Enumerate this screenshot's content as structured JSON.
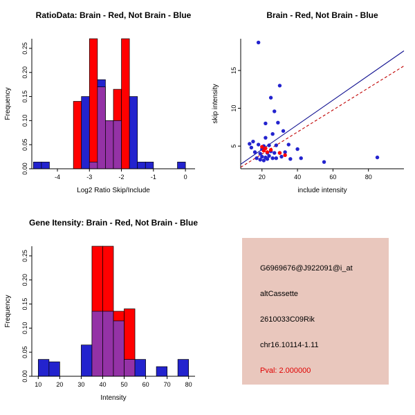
{
  "colors": {
    "red": "#FF0000",
    "blue": "#2323CE",
    "purple": "#9432A6",
    "line_blue": "#101090",
    "line_red": "#C00000",
    "info_bg": "#E9C7BD",
    "pval": "#E00000",
    "text": "#000000",
    "background": "#FFFFFF"
  },
  "chart_data": [
    {
      "type": "bar",
      "subtype": "overlaid-histogram",
      "title": "RatioData: Brain - Red, Not Brain - Blue",
      "xlabel": "Log2 Ratio Skip/Include",
      "ylabel": "Frequency",
      "xlim": [
        -4.8,
        0.3
      ],
      "ylim": [
        0,
        0.27
      ],
      "xticks": [
        -4,
        -3,
        -2,
        -1,
        0
      ],
      "yticks": [
        0,
        0.05,
        0.1,
        0.15,
        0.2,
        0.25
      ],
      "ytick_labels": [
        "0.00",
        "0.05",
        "0.10",
        "0.15",
        "0.20",
        "0.25"
      ],
      "legend": [
        {
          "name": "Brain",
          "color_key": "red"
        },
        {
          "name": "Not Brain",
          "color_key": "blue"
        }
      ],
      "bins": [
        {
          "x0": -4.75,
          "x1": -4.5,
          "red": 0,
          "blue": 0.014
        },
        {
          "x0": -4.5,
          "x1": -4.25,
          "red": 0,
          "blue": 0.014
        },
        {
          "x0": -3.5,
          "x1": -3.25,
          "red": 0.14,
          "blue": 0
        },
        {
          "x0": -3.25,
          "x1": -3.0,
          "red": 0,
          "blue": 0.15
        },
        {
          "x0": -3.0,
          "x1": -2.75,
          "red": 0.285,
          "blue": 0.014
        },
        {
          "x0": -2.75,
          "x1": -2.5,
          "red": 0.17,
          "blue": 0.185
        },
        {
          "x0": -2.5,
          "x1": -2.25,
          "red": 0.1,
          "blue": 0.1
        },
        {
          "x0": -2.25,
          "x1": -2.0,
          "red": 0.165,
          "blue": 0.1
        },
        {
          "x0": -2.0,
          "x1": -1.75,
          "red": 0.285,
          "blue": 0
        },
        {
          "x0": -1.75,
          "x1": -1.5,
          "red": 0,
          "blue": 0.15
        },
        {
          "x0": -1.5,
          "x1": -1.25,
          "red": 0,
          "blue": 0.014
        },
        {
          "x0": -1.25,
          "x1": -1.0,
          "red": 0,
          "blue": 0.014
        },
        {
          "x0": -0.25,
          "x1": 0.0,
          "red": 0,
          "blue": 0.014
        }
      ]
    },
    {
      "type": "scatter",
      "title": "Brain - Red, Not Brain - Blue",
      "xlabel": "include intensity",
      "ylabel": "skip intensity",
      "xlim": [
        8,
        100
      ],
      "ylim": [
        2,
        19.2
      ],
      "xticks": [
        20,
        40,
        60,
        80
      ],
      "yticks": [
        5,
        10,
        15
      ],
      "ytick_labels": [
        "5",
        "10",
        "15"
      ],
      "points_blue": [
        [
          13,
          5.3
        ],
        [
          14,
          4.8
        ],
        [
          15,
          5.6
        ],
        [
          16,
          4.2
        ],
        [
          17,
          3.4
        ],
        [
          18,
          18.7
        ],
        [
          18,
          5.2
        ],
        [
          19,
          4.0
        ],
        [
          19,
          3.2
        ],
        [
          20,
          4.6
        ],
        [
          20,
          3.6
        ],
        [
          21,
          3.1
        ],
        [
          21,
          5.0
        ],
        [
          22,
          3.5
        ],
        [
          22,
          6.1
        ],
        [
          22,
          8.0
        ],
        [
          23,
          4.1
        ],
        [
          23,
          3.3
        ],
        [
          24,
          5.1
        ],
        [
          24,
          3.7
        ],
        [
          25,
          11.4
        ],
        [
          25,
          4.3
        ],
        [
          26,
          3.4
        ],
        [
          26,
          6.6
        ],
        [
          27,
          9.6
        ],
        [
          27,
          4.1
        ],
        [
          28,
          3.4
        ],
        [
          28,
          5.1
        ],
        [
          29,
          8.1
        ],
        [
          30,
          13.0
        ],
        [
          30,
          4.1
        ],
        [
          31,
          3.6
        ],
        [
          32,
          7.0
        ],
        [
          33,
          4.2
        ],
        [
          35,
          5.2
        ],
        [
          36,
          3.3
        ],
        [
          40,
          4.6
        ],
        [
          42,
          3.4
        ],
        [
          55,
          2.9
        ],
        [
          85,
          3.5
        ]
      ],
      "points_red": [
        [
          20,
          4.9
        ],
        [
          21,
          4.4
        ],
        [
          22,
          4.7
        ],
        [
          23,
          4.2
        ],
        [
          25,
          4.5
        ],
        [
          30,
          4.1
        ],
        [
          33,
          3.8
        ]
      ],
      "line_blue": {
        "x1": 8,
        "y1": 2.6,
        "x2": 100,
        "y2": 17.6,
        "style": "solid"
      },
      "line_red": {
        "x1": 8,
        "y1": 2.2,
        "x2": 100,
        "y2": 15.6,
        "style": "dashed"
      }
    },
    {
      "type": "bar",
      "subtype": "overlaid-histogram",
      "title": "Gene Itensity: Brain - Red, Not Brain - Blue",
      "xlabel": "Intensity",
      "ylabel": "Frequency",
      "xlim": [
        7,
        83
      ],
      "ylim": [
        0,
        0.27
      ],
      "xticks": [
        10,
        20,
        30,
        40,
        50,
        60,
        70,
        80
      ],
      "yticks": [
        0,
        0.05,
        0.1,
        0.15,
        0.2,
        0.25
      ],
      "ytick_labels": [
        "0.00",
        "0.05",
        "0.10",
        "0.15",
        "0.20",
        "0.25"
      ],
      "legend": [
        {
          "name": "Brain",
          "color_key": "red"
        },
        {
          "name": "Not Brain",
          "color_key": "blue"
        }
      ],
      "bins": [
        {
          "x0": 10,
          "x1": 15,
          "red": 0,
          "blue": 0.035
        },
        {
          "x0": 15,
          "x1": 20,
          "red": 0,
          "blue": 0.03
        },
        {
          "x0": 30,
          "x1": 35,
          "red": 0,
          "blue": 0.065
        },
        {
          "x0": 35,
          "x1": 40,
          "red": 0.285,
          "blue": 0.135
        },
        {
          "x0": 40,
          "x1": 45,
          "red": 0.285,
          "blue": 0.135
        },
        {
          "x0": 45,
          "x1": 50,
          "red": 0.135,
          "blue": 0.115
        },
        {
          "x0": 50,
          "x1": 55,
          "red": 0.14,
          "blue": 0.035
        },
        {
          "x0": 55,
          "x1": 60,
          "red": 0,
          "blue": 0.035
        },
        {
          "x0": 65,
          "x1": 70,
          "red": 0,
          "blue": 0.02
        },
        {
          "x0": 75,
          "x1": 80,
          "red": 0,
          "blue": 0.035
        }
      ]
    }
  ],
  "info_panel": {
    "probe_id": "G6969676@J922091@i_at",
    "event_type": "altCassette",
    "gene_symbol": "2610033C09Rik",
    "locus": "chr16.10114-1.11",
    "pval": "Pval: 2.000000"
  }
}
